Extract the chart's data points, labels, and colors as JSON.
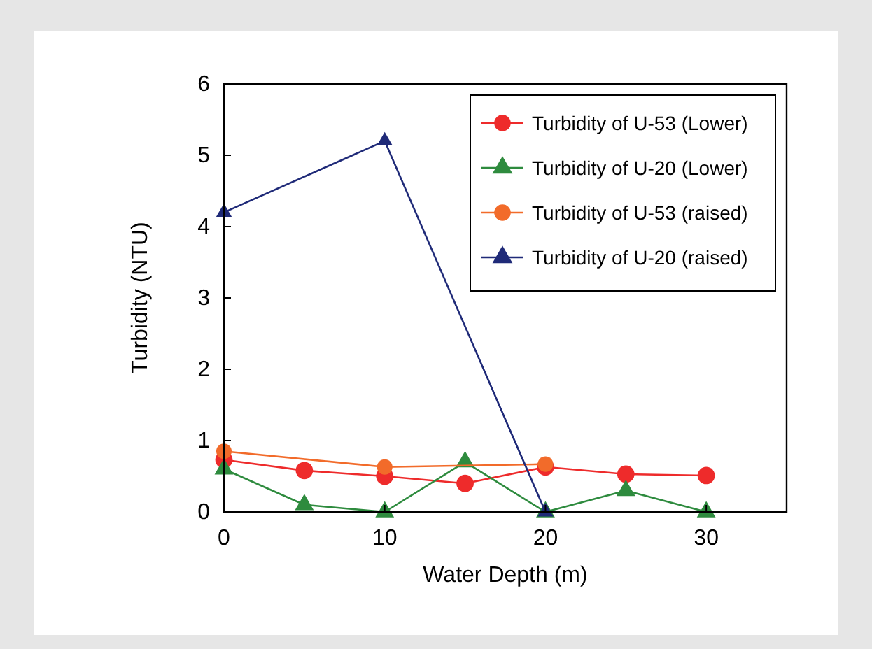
{
  "chart_data": {
    "type": "line",
    "xlabel": "Water Depth (m)",
    "ylabel": "Turbidity (NTU)",
    "xlim": [
      0,
      35
    ],
    "xticks": [
      0,
      10,
      20,
      30
    ],
    "ylim": [
      0,
      6
    ],
    "yticks": [
      0,
      1,
      2,
      3,
      4,
      5,
      6
    ],
    "grid": false,
    "legend": "top right",
    "line_style": "solid",
    "series": [
      {
        "name": "Turbidity of U-53 (Lower)",
        "color": "#ee2b2b",
        "marker": "circle",
        "x": [
          0,
          5,
          10,
          15,
          20,
          25,
          30
        ],
        "values": [
          0.73,
          0.58,
          0.5,
          0.4,
          0.63,
          0.53,
          0.51
        ]
      },
      {
        "name": "Turbidity of U-20 (Lower)",
        "color": "#2e8b3e",
        "marker": "triangle",
        "x": [
          0,
          5,
          10,
          15,
          20,
          25,
          30
        ],
        "values": [
          0.6,
          0.1,
          0,
          0.7,
          0,
          0.3,
          0
        ]
      },
      {
        "name": "Turbidity of U-53 (raised)",
        "color": "#f26b2a",
        "marker": "circle",
        "x": [
          0,
          10,
          20
        ],
        "values": [
          0.85,
          0.63,
          0.67
        ]
      },
      {
        "name": "Turbidity of U-20 (raised)",
        "color": "#1f2a78",
        "marker": "triangle",
        "x": [
          0,
          10,
          20
        ],
        "values": [
          4.2,
          5.2,
          0
        ]
      }
    ]
  }
}
